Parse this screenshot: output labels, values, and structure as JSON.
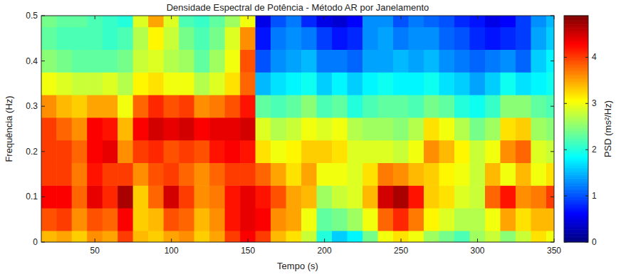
{
  "chart_data": {
    "type": "heatmap",
    "title": "Densidade Espectral de Potência - Método AR por Janelamento",
    "x_label": "Tempo (s)",
    "y_label": "Frequência (Hz)",
    "color_label": "PSD (ms²/Hz)",
    "color": "jet",
    "xlim": [
      15,
      350
    ],
    "xticks": [
      50,
      100,
      150,
      200,
      250,
      300,
      350
    ],
    "ylim": [
      0,
      0.5
    ],
    "yticks": [
      0,
      0.1,
      0.2,
      0.3,
      0.4,
      0.5
    ],
    "color_range": [
      0,
      4.9
    ],
    "color_ticks": [
      0,
      1,
      2,
      3,
      4
    ],
    "x": [
      20,
      30,
      40,
      50,
      60,
      70,
      80,
      90,
      100,
      110,
      120,
      130,
      140,
      150,
      160,
      170,
      180,
      190,
      200,
      210,
      220,
      230,
      240,
      250,
      260,
      270,
      280,
      290,
      300,
      310,
      320,
      330,
      340,
      350
    ],
    "y": [
      0,
      0.05,
      0.1,
      0.15,
      0.2,
      0.25,
      0.3,
      0.35,
      0.4,
      0.45,
      0.5
    ],
    "z": [
      [
        3.4,
        3.5,
        3.3,
        3.6,
        3.5,
        4.0,
        3.4,
        3.3,
        3.5,
        3.6,
        3.3,
        3.5,
        4.0,
        4.3,
        4.0,
        3.4,
        3.2,
        2.8,
        2.0,
        1.6,
        1.8,
        2.4,
        3.0,
        3.2,
        3.0,
        2.6,
        2.4,
        2.2,
        2.6,
        2.8,
        2.5,
        2.8,
        3.2,
        3.0
      ],
      [
        3.9,
        4.0,
        3.6,
        3.9,
        3.8,
        4.3,
        3.3,
        3.4,
        3.9,
        3.8,
        3.4,
        3.6,
        4.2,
        4.4,
        4.3,
        3.6,
        3.5,
        3.0,
        2.3,
        2.4,
        2.6,
        3.0,
        3.8,
        4.1,
        3.7,
        3.1,
        2.9,
        2.7,
        2.7,
        3.0,
        3.5,
        3.2,
        3.4,
        3.4
      ],
      [
        4.3,
        4.3,
        3.8,
        4.4,
        4.1,
        4.7,
        3.3,
        3.8,
        4.5,
        4.0,
        3.6,
        3.7,
        4.2,
        4.4,
        4.2,
        3.9,
        3.5,
        3.4,
        2.6,
        2.8,
        2.9,
        3.4,
        4.5,
        4.7,
        4.2,
        3.3,
        3.2,
        2.9,
        2.8,
        3.8,
        4.2,
        3.6,
        3.7,
        4.0
      ],
      [
        4.0,
        4.0,
        3.7,
        4.2,
        4.0,
        4.0,
        3.6,
        3.9,
        4.0,
        3.8,
        3.6,
        3.8,
        4.0,
        4.0,
        3.8,
        3.5,
        3.2,
        3.5,
        3.0,
        3.0,
        2.9,
        3.2,
        3.7,
        3.6,
        3.4,
        3.3,
        3.1,
        3.0,
        2.8,
        3.4,
        3.0,
        3.4,
        3.0,
        3.2
      ],
      [
        4.0,
        4.0,
        3.8,
        4.3,
        4.4,
        3.6,
        4.0,
        4.1,
        3.9,
        4.0,
        3.9,
        4.2,
        4.3,
        4.2,
        3.2,
        3.0,
        3.1,
        3.3,
        3.3,
        3.2,
        2.9,
        2.9,
        2.9,
        2.8,
        3.0,
        3.6,
        3.4,
        3.1,
        2.8,
        3.0,
        3.6,
        3.8,
        2.9,
        2.8
      ],
      [
        4.0,
        3.8,
        3.6,
        4.3,
        4.2,
        3.4,
        4.3,
        4.5,
        4.4,
        4.5,
        4.3,
        4.4,
        4.4,
        4.5,
        2.9,
        2.7,
        2.8,
        3.0,
        2.9,
        3.0,
        2.7,
        2.6,
        2.6,
        2.5,
        2.7,
        3.2,
        3.0,
        2.7,
        2.4,
        2.6,
        3.2,
        3.3,
        2.6,
        2.5
      ],
      [
        3.6,
        3.4,
        3.3,
        3.5,
        3.5,
        3.0,
        3.8,
        4.1,
        3.9,
        4.0,
        3.6,
        3.7,
        3.9,
        4.2,
        2.3,
        2.2,
        2.3,
        2.5,
        2.2,
        2.3,
        2.0,
        2.2,
        2.3,
        2.3,
        2.2,
        2.4,
        2.3,
        2.0,
        1.9,
        2.1,
        2.5,
        2.5,
        2.3,
        2.2
      ],
      [
        3.0,
        2.9,
        2.8,
        2.8,
        2.9,
        2.7,
        3.1,
        3.2,
        3.0,
        3.0,
        2.7,
        2.9,
        3.2,
        3.8,
        1.5,
        1.7,
        1.8,
        1.9,
        1.6,
        1.8,
        1.6,
        1.8,
        1.9,
        1.8,
        1.8,
        1.9,
        1.7,
        1.6,
        1.4,
        1.6,
        1.9,
        1.7,
        1.8,
        1.9
      ],
      [
        2.5,
        2.4,
        2.3,
        2.3,
        2.3,
        2.4,
        2.8,
        2.9,
        2.7,
        2.6,
        2.3,
        2.6,
        3.0,
        3.9,
        1.0,
        1.3,
        1.4,
        1.5,
        1.2,
        1.2,
        1.1,
        1.4,
        1.4,
        1.5,
        1.4,
        1.5,
        1.3,
        1.2,
        1.1,
        1.2,
        1.3,
        1.1,
        1.6,
        1.8
      ],
      [
        2.3,
        2.2,
        2.2,
        2.2,
        2.1,
        2.2,
        2.7,
        3.1,
        2.8,
        2.4,
        2.2,
        2.4,
        2.9,
        3.6,
        0.7,
        1.2,
        1.3,
        1.2,
        0.9,
        0.7,
        0.8,
        1.3,
        1.4,
        1.2,
        1.3,
        1.3,
        1.1,
        1.0,
        0.8,
        0.7,
        0.8,
        0.9,
        1.4,
        1.6
      ],
      [
        2.4,
        2.3,
        2.3,
        2.2,
        2.1,
        2.0,
        2.9,
        3.5,
        2.9,
        2.2,
        2.1,
        2.3,
        2.6,
        3.0,
        0.5,
        1.0,
        1.2,
        0.8,
        0.5,
        0.4,
        0.6,
        1.3,
        1.3,
        1.0,
        1.2,
        1.1,
        1.0,
        0.8,
        0.7,
        0.5,
        0.6,
        0.9,
        1.3,
        1.5
      ]
    ]
  }
}
